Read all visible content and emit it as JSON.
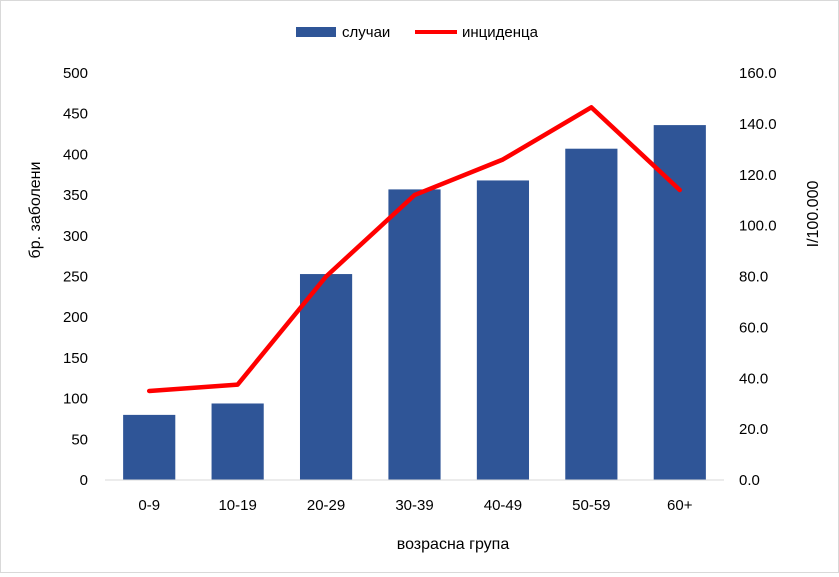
{
  "chart_data": {
    "type": "bar",
    "categories": [
      "0-9",
      "10-19",
      "20-29",
      "30-39",
      "40-49",
      "50-59",
      "60+"
    ],
    "series": [
      {
        "name": "случаи",
        "type": "bar",
        "axis": "left",
        "color": "#2f5597",
        "values": [
          80,
          94,
          253,
          357,
          368,
          407,
          436
        ]
      },
      {
        "name": "инциденца",
        "type": "line",
        "axis": "right",
        "color": "#ff0000",
        "values": [
          35.0,
          37.5,
          80.0,
          112.0,
          126.0,
          146.5,
          114.0
        ]
      }
    ],
    "xlabel": "возрасна група",
    "ylabel": "бр. заболени",
    "y2label": "I/100.000",
    "ylim": [
      0,
      500
    ],
    "y2lim": [
      0,
      160
    ],
    "yticks": [
      "0",
      "50",
      "100",
      "150",
      "200",
      "250",
      "300",
      "350",
      "400",
      "450",
      "500"
    ],
    "y2ticks": [
      "0.0",
      "20.0",
      "40.0",
      "60.0",
      "80.0",
      "100.0",
      "120.0",
      "140.0",
      "160.0"
    ],
    "grid": false,
    "legend": "top-center"
  }
}
